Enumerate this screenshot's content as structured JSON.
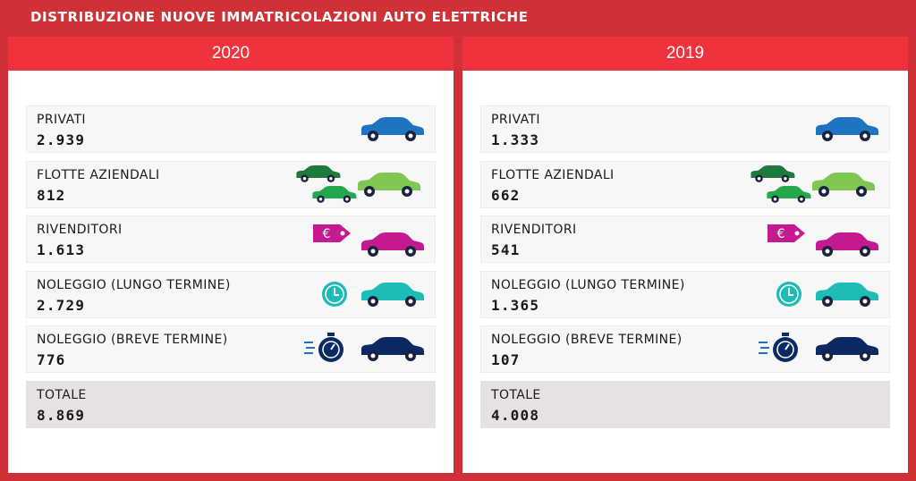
{
  "title": "DISTRIBUZIONE NUOVE IMMATRICOLAZIONI AUTO ELETTRICHE",
  "colors": {
    "private_car": "#1f74c1",
    "fleet_dark": "#1d7a3c",
    "fleet_mid": "#21a94c",
    "fleet_light": "#7fc652",
    "dealer": "#c4198f",
    "long_term": "#1ebbb7",
    "short_term": "#0b2a63",
    "header_red": "#f0323c",
    "frame_red": "#cf3137"
  },
  "panels": [
    {
      "year": "2020",
      "rows": [
        {
          "label": "PRIVATI",
          "value": "2.939",
          "icon": "car-icon"
        },
        {
          "label": "FLOTTE AZIENDALI",
          "value": "812",
          "icon": "fleet-cars-icon"
        },
        {
          "label": "RIVENDITORI",
          "value": "1.613",
          "icon": "car-with-euro-tag-icon"
        },
        {
          "label": "NOLEGGIO (LUNGO TERMINE)",
          "value": "2.729",
          "icon": "car-with-clock-icon"
        },
        {
          "label": "NOLEGGIO (BREVE TERMINE)",
          "value": "776",
          "icon": "car-with-stopwatch-icon"
        }
      ],
      "total": {
        "label": "TOTALE",
        "value": "8.869"
      }
    },
    {
      "year": "2019",
      "rows": [
        {
          "label": "PRIVATI",
          "value": "1.333",
          "icon": "car-icon"
        },
        {
          "label": "FLOTTE AZIENDALI",
          "value": "662",
          "icon": "fleet-cars-icon"
        },
        {
          "label": "RIVENDITORI",
          "value": "541",
          "icon": "car-with-euro-tag-icon"
        },
        {
          "label": "NOLEGGIO (LUNGO TERMINE)",
          "value": "1.365",
          "icon": "car-with-clock-icon"
        },
        {
          "label": "NOLEGGIO (BREVE TERMINE)",
          "value": "107",
          "icon": "car-with-stopwatch-icon"
        }
      ],
      "total": {
        "label": "TOTALE",
        "value": "4.008"
      }
    }
  ],
  "chart_data": {
    "type": "table",
    "title": "DISTRIBUZIONE NUOVE IMMATRICOLAZIONI AUTO ELETTRICHE",
    "columns": [
      "2020",
      "2019"
    ],
    "categories": [
      "PRIVATI",
      "FLOTTE AZIENDALI",
      "RIVENDITORI",
      "NOLEGGIO (LUNGO TERMINE)",
      "NOLEGGIO (BREVE TERMINE)",
      "TOTALE"
    ],
    "series": [
      {
        "name": "2020",
        "values": [
          2939,
          812,
          1613,
          2729,
          776,
          8869
        ]
      },
      {
        "name": "2019",
        "values": [
          1333,
          662,
          541,
          1365,
          107,
          4008
        ]
      }
    ]
  }
}
